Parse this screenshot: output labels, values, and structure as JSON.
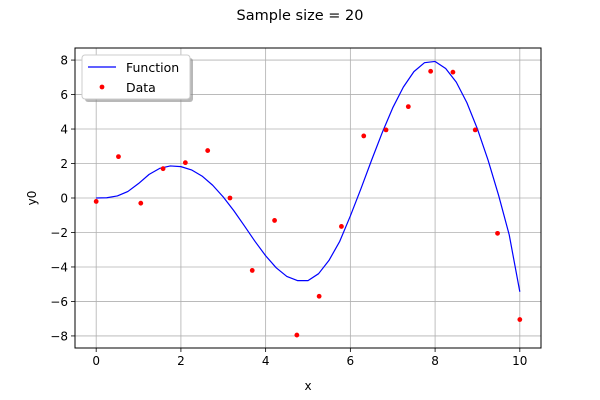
{
  "chart_data": {
    "type": "line",
    "title": "Sample size = 20",
    "xlabel": "x",
    "ylabel": "y0",
    "xlim": [
      -0.5,
      10.5
    ],
    "ylim": [
      -8.7,
      8.7
    ],
    "xticks": [
      0,
      2,
      4,
      6,
      8,
      10
    ],
    "yticks": [
      -8,
      -6,
      -4,
      -2,
      0,
      2,
      4,
      6,
      8
    ],
    "grid": true,
    "legend_position": "upper-left",
    "series": [
      {
        "name": "Function",
        "kind": "line",
        "color": "#0000ff",
        "x": [
          0,
          0.25,
          0.5,
          0.75,
          1.0,
          1.25,
          1.5,
          1.75,
          2.0,
          2.25,
          2.5,
          2.75,
          3.0,
          3.25,
          3.5,
          3.75,
          4.0,
          4.25,
          4.5,
          4.75,
          5.0,
          5.25,
          5.5,
          5.75,
          6.0,
          6.25,
          6.5,
          6.75,
          7.0,
          7.25,
          7.5,
          7.75,
          8.0,
          8.25,
          8.5,
          8.75,
          9.0,
          9.25,
          9.5,
          9.75,
          10.0
        ],
        "y": [
          0.0,
          0.015,
          0.12,
          0.38,
          0.84,
          1.37,
          1.72,
          1.86,
          1.82,
          1.63,
          1.27,
          0.74,
          0.06,
          -0.74,
          -1.62,
          -2.52,
          -3.35,
          -4.05,
          -4.55,
          -4.79,
          -4.79,
          -4.39,
          -3.6,
          -2.51,
          -1.04,
          0.54,
          2.19,
          3.78,
          5.23,
          6.43,
          7.33,
          7.85,
          7.92,
          7.51,
          6.72,
          5.53,
          4.0,
          2.2,
          0.15,
          -2.14,
          -5.44
        ]
      },
      {
        "name": "Data",
        "kind": "scatter",
        "color": "#ff0000",
        "x": [
          0.0,
          0.526,
          1.053,
          1.579,
          2.105,
          2.632,
          3.158,
          3.684,
          4.211,
          4.737,
          5.263,
          5.789,
          6.316,
          6.842,
          7.368,
          7.895,
          8.421,
          8.947,
          9.474,
          10.0
        ],
        "y": [
          -0.2,
          2.4,
          -0.3,
          1.7,
          2.05,
          2.75,
          0.0,
          -4.2,
          -1.3,
          -7.95,
          -5.7,
          -1.65,
          3.6,
          3.95,
          5.3,
          7.35,
          7.3,
          3.95,
          -2.05,
          -7.05
        ]
      }
    ]
  }
}
